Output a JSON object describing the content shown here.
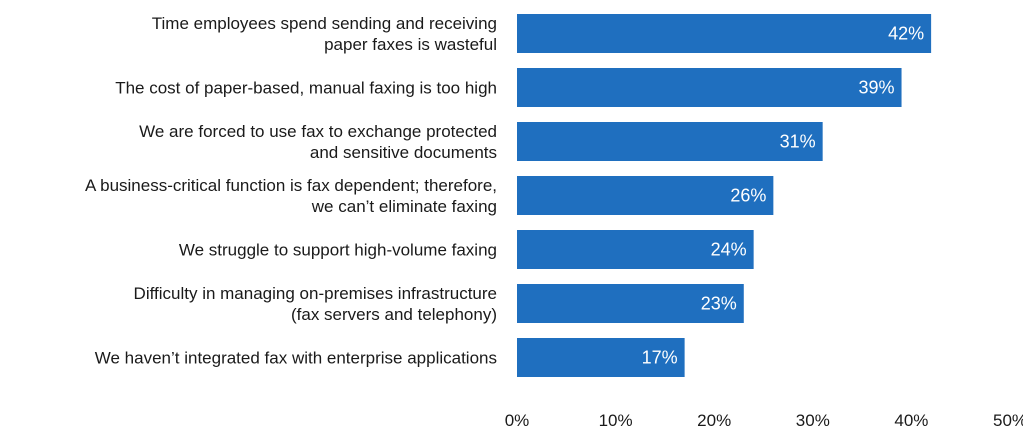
{
  "chart_data": {
    "type": "bar",
    "orientation": "horizontal",
    "categories": [
      [
        "Time employees spend sending and receiving",
        "paper faxes is wasteful"
      ],
      [
        "The cost of paper-based, manual faxing is too high"
      ],
      [
        "We are forced to use fax to exchange protected",
        "and sensitive documents"
      ],
      [
        "A business-critical function is fax dependent; therefore,",
        "we can’t eliminate faxing"
      ],
      [
        "We struggle to support high-volume faxing"
      ],
      [
        "Difficulty in managing on-premises infrastructure",
        "(fax servers and telephony)"
      ],
      [
        "We haven’t integrated fax with enterprise applications"
      ]
    ],
    "values": [
      42,
      39,
      31,
      26,
      24,
      23,
      17
    ],
    "value_labels": [
      "42%",
      "39%",
      "31%",
      "26%",
      "24%",
      "23%",
      "17%"
    ],
    "xlim": [
      0,
      50
    ],
    "x_ticks": [
      0,
      10,
      20,
      30,
      40,
      50
    ],
    "x_tick_labels": [
      "0%",
      "10%",
      "20%",
      "30%",
      "40%",
      "50%"
    ],
    "bar_color": "#1f6fbf",
    "grid": false
  }
}
